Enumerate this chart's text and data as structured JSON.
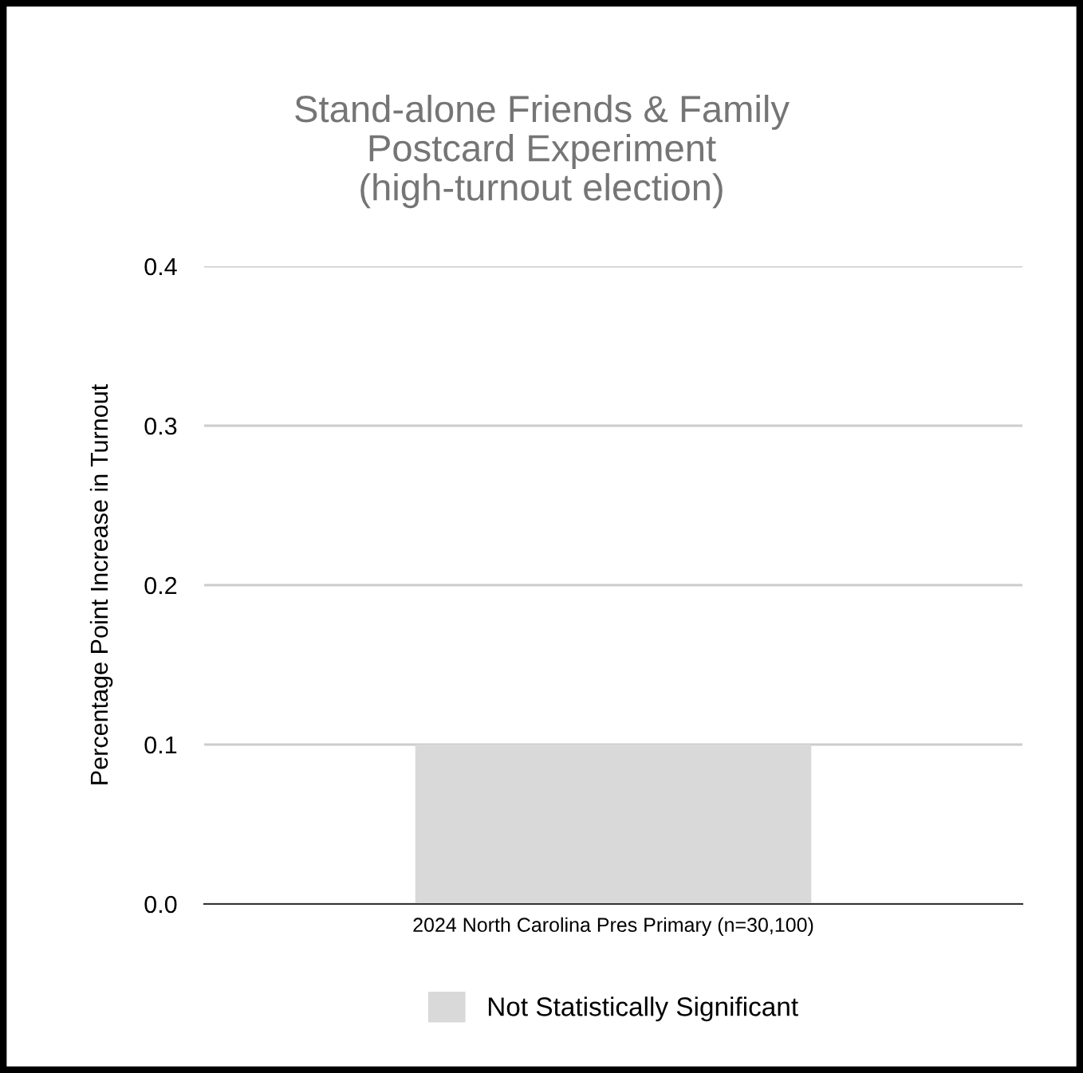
{
  "chart_data": {
    "type": "bar",
    "title": "Stand-alone Friends & Family\nPostcard Experiment\n(high-turnout election)",
    "ylabel": "Percentage Point Increase in Turnout",
    "categories": [
      "2024 North Carolina Pres Primary (n=30,100)"
    ],
    "series": [
      {
        "name": "Not Statistically Significant",
        "color": "#d9d9d9",
        "values": [
          0.1
        ]
      }
    ],
    "ylim": [
      0,
      0.4
    ],
    "yticks": [
      {
        "value": 0,
        "label": "0.0"
      },
      {
        "value": 0.1,
        "label": "0.1"
      },
      {
        "value": 0.2,
        "label": "0.2"
      },
      {
        "value": 0.3,
        "label": "0.3"
      },
      {
        "value": 0.4,
        "label": "0.4"
      }
    ],
    "grid": "y",
    "legend": "bottom"
  }
}
